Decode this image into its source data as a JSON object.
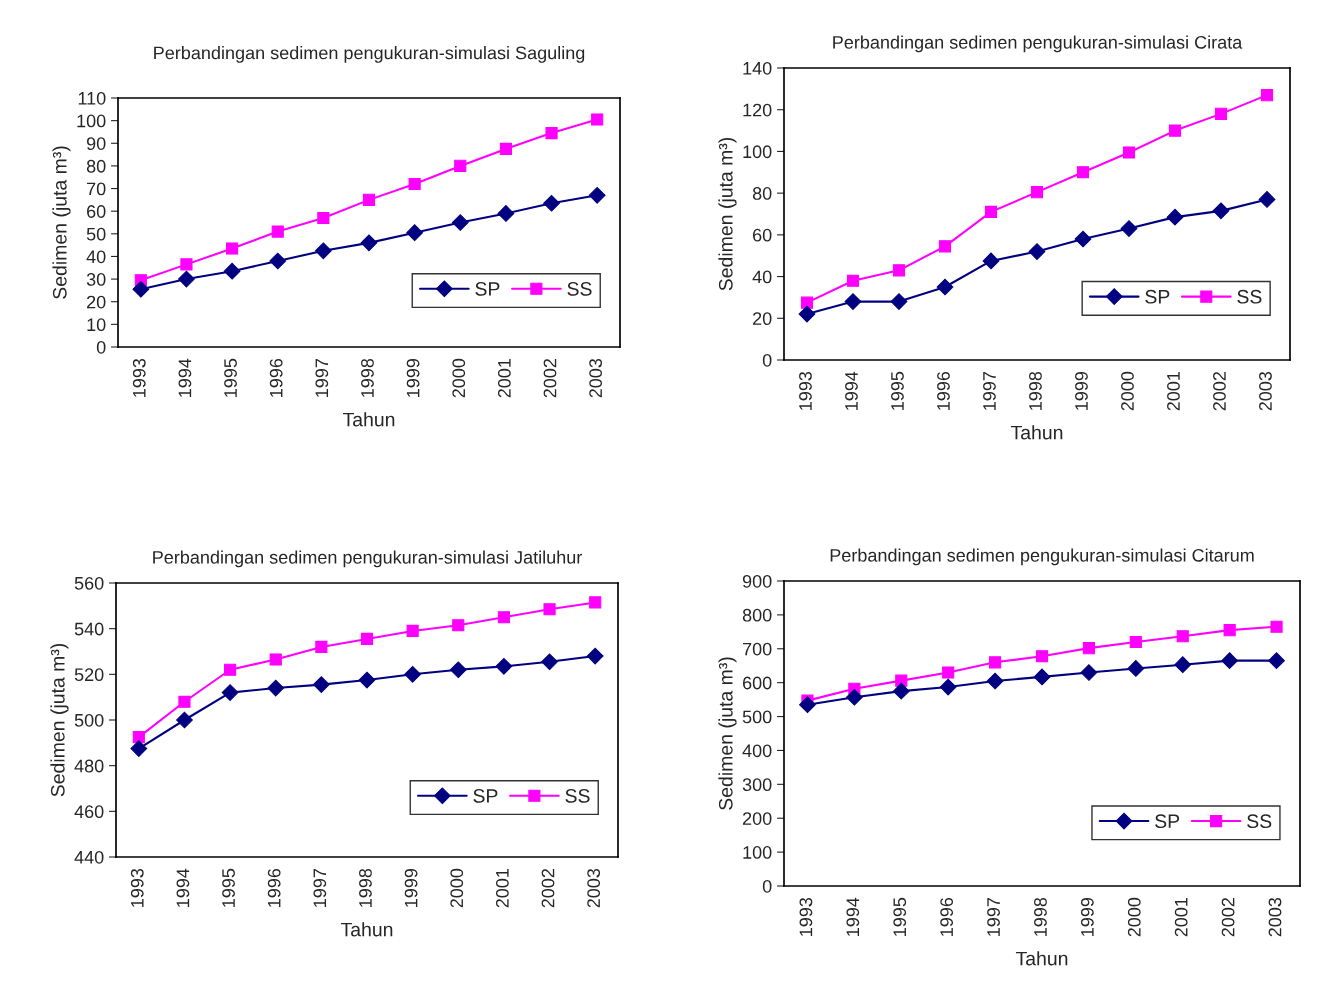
{
  "chart_data": [
    {
      "type": "line",
      "title": "Perbandingan sedimen pengukuran-simulasi Saguling",
      "xlabel": "Tahun",
      "ylabel": "Sedimen (juta m³)",
      "categories": [
        "1993",
        "1994",
        "1995",
        "1996",
        "1997",
        "1998",
        "1999",
        "2000",
        "2001",
        "2002",
        "2003"
      ],
      "ylim": [
        0,
        110
      ],
      "yticks": [
        0,
        10,
        20,
        30,
        40,
        50,
        60,
        70,
        80,
        90,
        100,
        110
      ],
      "grid": false,
      "legend": "bottom right",
      "series": [
        {
          "name": "SP",
          "color": "#000080",
          "marker": "diamond",
          "values": [
            25.5,
            30,
            33.5,
            38,
            42.5,
            46,
            50.5,
            55,
            59,
            63.5,
            67
          ]
        },
        {
          "name": "SS",
          "color": "#ff00ff",
          "marker": "square",
          "values": [
            29.5,
            36.5,
            43.5,
            51,
            57,
            65,
            72,
            80,
            87.5,
            94.5,
            100.5
          ]
        }
      ]
    },
    {
      "type": "line",
      "title": "Perbandingan sedimen pengukuran-simulasi Cirata",
      "xlabel": "Tahun",
      "ylabel": "Sedimen (juta m³)",
      "categories": [
        "1993",
        "1994",
        "1995",
        "1996",
        "1997",
        "1998",
        "1999",
        "2000",
        "2001",
        "2002",
        "2003"
      ],
      "ylim": [
        0,
        140
      ],
      "yticks": [
        0,
        20,
        40,
        60,
        80,
        100,
        120,
        140
      ],
      "grid": false,
      "legend": "bottom right",
      "series": [
        {
          "name": "SP",
          "color": "#000080",
          "marker": "diamond",
          "values": [
            22,
            28,
            28,
            35,
            47.5,
            52,
            58,
            63,
            68.5,
            71.5,
            77
          ]
        },
        {
          "name": "SS",
          "color": "#ff00ff",
          "marker": "square",
          "values": [
            27.5,
            38,
            43,
            54.5,
            71,
            80.5,
            90,
            99.5,
            110,
            118,
            127
          ]
        }
      ]
    },
    {
      "type": "line",
      "title": "Perbandingan sedimen pengukuran-simulasi Jatiluhur",
      "xlabel": "Tahun",
      "ylabel": "Sedimen (juta m³)",
      "categories": [
        "1993",
        "1994",
        "1995",
        "1996",
        "1997",
        "1998",
        "1999",
        "2000",
        "2001",
        "2002",
        "2003"
      ],
      "ylim": [
        440,
        560
      ],
      "yticks": [
        440,
        460,
        480,
        500,
        520,
        540,
        560
      ],
      "grid": false,
      "legend": "bottom right",
      "series": [
        {
          "name": "SP",
          "color": "#000080",
          "marker": "diamond",
          "values": [
            487.5,
            500,
            512,
            514,
            515.5,
            517.5,
            520,
            522,
            523.5,
            525.5,
            528
          ]
        },
        {
          "name": "SS",
          "color": "#ff00ff",
          "marker": "square",
          "values": [
            492.5,
            508,
            522,
            526.5,
            532,
            535.5,
            539,
            541.5,
            545,
            548.5,
            551.5
          ]
        }
      ]
    },
    {
      "type": "line",
      "title": "Perbandingan sedimen pengukuran-simulasi Citarum",
      "xlabel": "Tahun",
      "ylabel": "Sedimen (juta m³)",
      "categories": [
        "1993",
        "1994",
        "1995",
        "1996",
        "1997",
        "1998",
        "1999",
        "2000",
        "2001",
        "2002",
        "2003"
      ],
      "ylim": [
        0,
        900
      ],
      "yticks": [
        0,
        100,
        200,
        300,
        400,
        500,
        600,
        700,
        800,
        900
      ],
      "grid": false,
      "legend": "bottom right",
      "series": [
        {
          "name": "SP",
          "color": "#000080",
          "marker": "diamond",
          "values": [
            535,
            557,
            575,
            587,
            605,
            617,
            630,
            642,
            653,
            665,
            665
          ]
        },
        {
          "name": "SS",
          "color": "#ff00ff",
          "marker": "square",
          "values": [
            547,
            582,
            606,
            630,
            660,
            678,
            702,
            720,
            737,
            755,
            765
          ]
        }
      ]
    }
  ]
}
